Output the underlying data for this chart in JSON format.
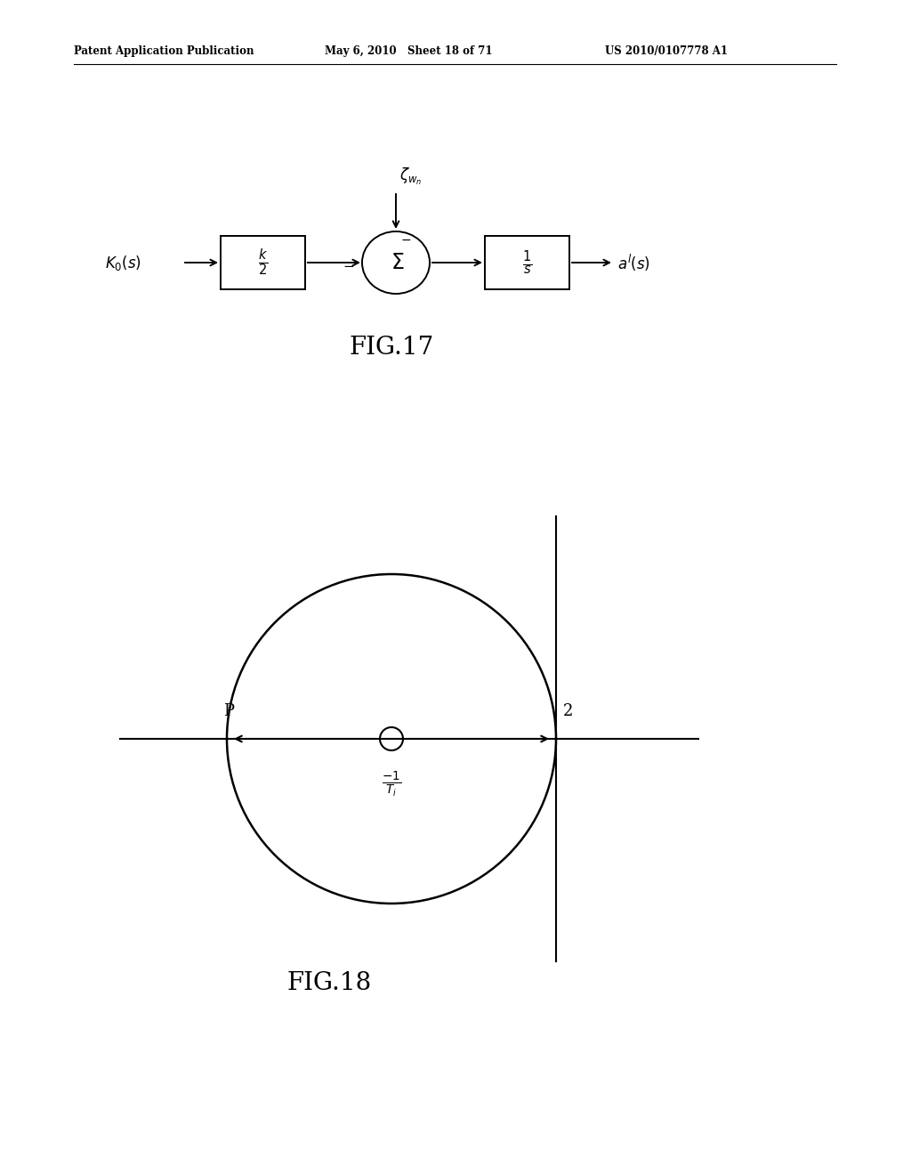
{
  "bg_color": "#ffffff",
  "header_left": "Patent Application Publication",
  "header_mid": "May 6, 2010   Sheet 18 of 71",
  "header_right": "US 2010/0107778 A1",
  "fig17_label": "FIG.17",
  "fig18_label": "FIG.18",
  "fig_color": "#000000"
}
